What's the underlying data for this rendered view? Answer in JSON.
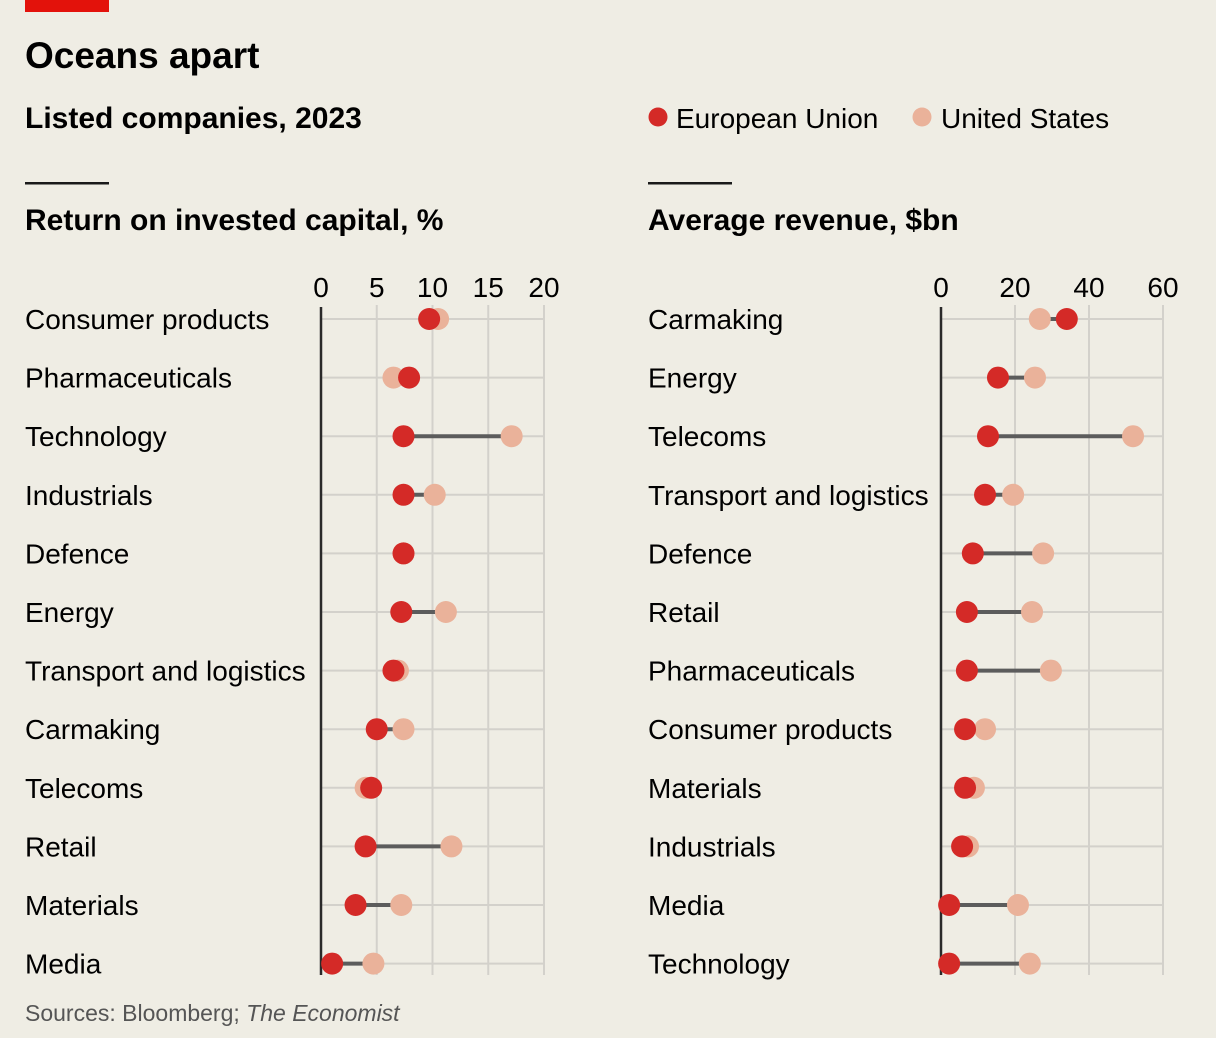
{
  "header": {
    "title": "Oceans apart",
    "subtitle": "Listed companies, 2023",
    "source_prefix": "Sources: Bloomberg; ",
    "source_italic": "The Economist"
  },
  "colors": {
    "eu": "#d42a27",
    "us": "#eab29a",
    "accent": "#e3120b",
    "background": "#efede4",
    "connector": "#5c5c5c"
  },
  "legend": [
    {
      "name": "European Union",
      "color": "#d42a27"
    },
    {
      "name": "United States",
      "color": "#eab29a"
    }
  ],
  "chart_data": [
    {
      "type": "dot-plot",
      "title": "Return on invested capital, %",
      "xlim": [
        0,
        20
      ],
      "ticks": [
        "0",
        "5",
        "10",
        "15",
        "20"
      ],
      "tick_values": [
        0,
        5,
        10,
        15,
        20
      ],
      "grid": true,
      "categories": [
        "Consumer products",
        "Pharmaceuticals",
        "Technology",
        "Industrials",
        "Defence",
        "Energy",
        "Transport and logistics",
        "Carmaking",
        "Telecoms",
        "Retail",
        "Materials",
        "Media"
      ],
      "series": [
        {
          "name": "European Union",
          "values": [
            9.7,
            7.9,
            7.4,
            7.4,
            7.4,
            7.2,
            6.5,
            5.0,
            4.5,
            4.0,
            3.1,
            1.0
          ]
        },
        {
          "name": "United States",
          "values": [
            10.5,
            6.5,
            17.1,
            10.2,
            7.4,
            11.2,
            6.9,
            7.4,
            4.0,
            11.7,
            7.2,
            4.7
          ]
        }
      ]
    },
    {
      "type": "dot-plot",
      "title": "Average revenue, $bn",
      "xlim": [
        0,
        60
      ],
      "ticks": [
        "0",
        "20",
        "40",
        "60"
      ],
      "tick_values": [
        0,
        20,
        40,
        60
      ],
      "grid": true,
      "categories": [
        "Carmaking",
        "Energy",
        "Telecoms",
        "Transport and logistics",
        "Defence",
        "Retail",
        "Pharmaceuticals",
        "Consumer products",
        "Materials",
        "Industrials",
        "Media",
        "Technology"
      ],
      "series": [
        {
          "name": "European Union",
          "values": [
            34,
            15.4,
            12.7,
            11.9,
            8.6,
            7,
            7,
            6.5,
            6.5,
            5.7,
            2.2,
            2.2
          ]
        },
        {
          "name": "United States",
          "values": [
            26.7,
            25.4,
            51.9,
            19.5,
            27.6,
            24.6,
            29.7,
            11.9,
            8.9,
            7.3,
            20.8,
            24
          ]
        }
      ]
    }
  ]
}
